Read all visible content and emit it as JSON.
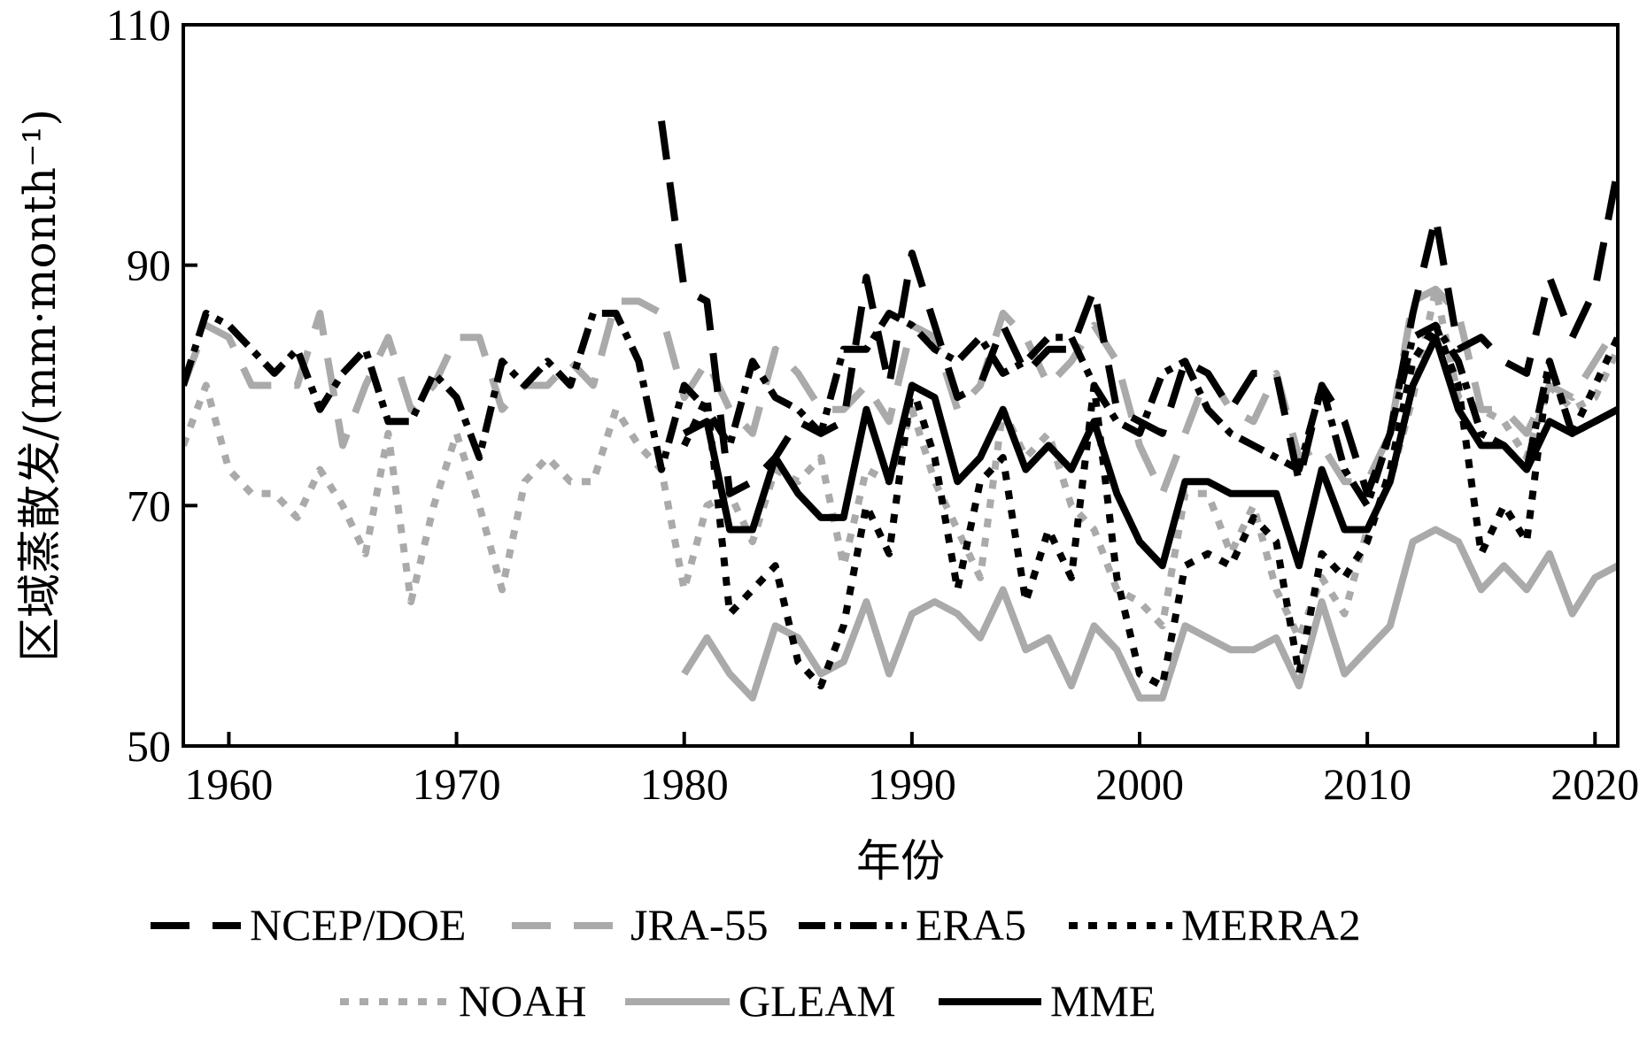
{
  "chart_data": {
    "type": "line",
    "xlabel": "年份",
    "ylabel": "区域蒸散发/(mm·month⁻¹)",
    "xlim": [
      1958,
      2021
    ],
    "ylim": [
      50,
      110
    ],
    "x_ticks": [
      1960,
      1970,
      1980,
      1990,
      2000,
      2010,
      2020
    ],
    "y_ticks": [
      50,
      70,
      90,
      110
    ],
    "grid": false,
    "legend_position": "bottom",
    "series": [
      {
        "name": "NCEP/DOE",
        "color": "#000000",
        "style": "long-dash",
        "x": [
          1979,
          1980,
          1981,
          1982,
          1983,
          1984,
          1985,
          1986,
          1987,
          1988,
          1989,
          1990,
          1991,
          1992,
          1993,
          1994,
          1995,
          1996,
          1997,
          1998,
          1999,
          2000,
          2001,
          2002,
          2003,
          2004,
          2005,
          2006,
          2007,
          2008,
          2009,
          2010,
          2011,
          2012,
          2013,
          2014,
          2015,
          2016,
          2017,
          2018,
          2019,
          2020,
          2021
        ],
        "values": [
          102,
          88,
          87,
          71,
          72,
          74,
          77,
          76,
          77,
          89,
          80,
          91,
          85,
          79,
          80,
          85,
          81,
          83,
          83,
          88,
          78,
          77,
          76,
          82,
          81,
          78,
          81,
          81,
          72,
          80,
          77,
          71,
          76,
          86,
          94,
          83,
          84,
          82,
          81,
          89,
          84,
          88,
          98
        ]
      },
      {
        "name": "JRA-55",
        "color": "#aaaaaa",
        "style": "long-dash",
        "x": [
          1958,
          1959,
          1960,
          1961,
          1962,
          1963,
          1964,
          1965,
          1966,
          1967,
          1968,
          1969,
          1970,
          1971,
          1972,
          1973,
          1974,
          1975,
          1976,
          1977,
          1978,
          1979,
          1980,
          1981,
          1982,
          1983,
          1984,
          1985,
          1986,
          1987,
          1988,
          1989,
          1990,
          1991,
          1992,
          1993,
          1994,
          1995,
          1996,
          1997,
          1998,
          1999,
          2000,
          2001,
          2002,
          2003,
          2004,
          2005,
          2006,
          2007,
          2008,
          2009,
          2010,
          2011,
          2012,
          2013,
          2014,
          2015,
          2016,
          2017,
          2018,
          2019,
          2020,
          2021
        ],
        "values": [
          80,
          85,
          84,
          80,
          80,
          80,
          86,
          75,
          80,
          84,
          78,
          80,
          84,
          84,
          78,
          80,
          80,
          82,
          80,
          87,
          87,
          86,
          79,
          82,
          78,
          76,
          83,
          81,
          78,
          78,
          80,
          77,
          85,
          84,
          78,
          80,
          86,
          84,
          80,
          82,
          85,
          82,
          75,
          71,
          76,
          81,
          78,
          77,
          81,
          74,
          75,
          72,
          72,
          76,
          87,
          88,
          86,
          78,
          78,
          76,
          80,
          79,
          82,
          85
        ]
      },
      {
        "name": "ERA5",
        "color": "#000000",
        "style": "dash-dot",
        "x": [
          1958,
          1959,
          1960,
          1961,
          1962,
          1963,
          1964,
          1965,
          1966,
          1967,
          1968,
          1969,
          1970,
          1971,
          1972,
          1973,
          1974,
          1975,
          1976,
          1977,
          1978,
          1979,
          1980,
          1981,
          1982,
          1983,
          1984,
          1985,
          1986,
          1987,
          1988,
          1989,
          1990,
          1991,
          1992,
          1993,
          1994,
          1995,
          1996,
          1997,
          1998,
          1999,
          2000,
          2001,
          2002,
          2003,
          2004,
          2005,
          2006,
          2007,
          2008,
          2009,
          2010,
          2011,
          2012,
          2013,
          2014,
          2015,
          2016,
          2017,
          2018,
          2019,
          2020,
          2021
        ],
        "values": [
          80,
          86,
          85,
          83,
          81,
          83,
          78,
          81,
          83,
          77,
          77,
          81,
          79,
          74,
          82,
          80,
          82,
          80,
          86,
          86,
          82,
          73,
          80,
          78,
          75,
          82,
          79,
          78,
          76,
          83,
          83,
          86,
          85,
          83,
          82,
          84,
          81,
          82,
          84,
          84,
          80,
          77,
          76,
          81,
          82,
          78,
          76,
          75,
          74,
          73,
          80,
          73,
          70,
          76,
          84,
          85,
          82,
          76,
          75,
          73,
          82,
          76,
          77,
          78
        ]
      },
      {
        "name": "MERRA2",
        "color": "#000000",
        "style": "dotted",
        "x": [
          1980,
          1981,
          1982,
          1983,
          1984,
          1985,
          1986,
          1987,
          1988,
          1989,
          1990,
          1991,
          1992,
          1993,
          1994,
          1995,
          1996,
          1997,
          1998,
          1999,
          2000,
          2001,
          2002,
          2003,
          2004,
          2005,
          2006,
          2007,
          2008,
          2009,
          2010,
          2011,
          2012,
          2013,
          2014,
          2015,
          2016,
          2017,
          2018,
          2019,
          2020,
          2021
        ],
        "values": [
          75,
          79,
          61,
          63,
          65,
          57,
          55,
          60,
          70,
          66,
          80,
          74,
          63,
          72,
          74,
          62,
          68,
          64,
          80,
          64,
          56,
          55,
          65,
          66,
          65,
          69,
          67,
          56,
          66,
          64,
          67,
          73,
          82,
          85,
          80,
          66,
          70,
          67,
          82,
          76,
          80,
          84
        ]
      },
      {
        "name": "NOAH",
        "color": "#aaaaaa",
        "style": "dotted",
        "x": [
          1958,
          1959,
          1960,
          1961,
          1962,
          1963,
          1964,
          1965,
          1966,
          1967,
          1968,
          1969,
          1970,
          1971,
          1972,
          1973,
          1974,
          1975,
          1976,
          1977,
          1978,
          1979,
          1980,
          1981,
          1982,
          1983,
          1984,
          1985,
          1986,
          1987,
          1988,
          1989,
          1990,
          1991,
          1992,
          1993,
          1994,
          1995,
          1996,
          1997,
          1998,
          1999,
          2000,
          2001,
          2002,
          2003,
          2004,
          2005,
          2006,
          2007,
          2008,
          2009,
          2010,
          2011,
          2012,
          2013,
          2014,
          2015,
          2016,
          2017,
          2018,
          2019,
          2020,
          2021
        ],
        "values": [
          75,
          80,
          73,
          71,
          71,
          69,
          73,
          70,
          66,
          76,
          62,
          70,
          76,
          70,
          63,
          72,
          74,
          72,
          72,
          78,
          75,
          73,
          63,
          70,
          71,
          67,
          73,
          72,
          74,
          65,
          73,
          72,
          78,
          72,
          68,
          64,
          78,
          74,
          76,
          70,
          68,
          63,
          62,
          60,
          71,
          71,
          66,
          70,
          63,
          59,
          64,
          61,
          68,
          72,
          79,
          88,
          79,
          78,
          77,
          74,
          80,
          78,
          79,
          83
        ]
      },
      {
        "name": "GLEAM",
        "color": "#aaaaaa",
        "style": "solid",
        "x": [
          1980,
          1981,
          1982,
          1983,
          1984,
          1985,
          1986,
          1987,
          1988,
          1989,
          1990,
          1991,
          1992,
          1993,
          1994,
          1995,
          1996,
          1997,
          1998,
          1999,
          2000,
          2001,
          2002,
          2003,
          2004,
          2005,
          2006,
          2007,
          2008,
          2009,
          2010,
          2011,
          2012,
          2013,
          2014,
          2015,
          2016,
          2017,
          2018,
          2019,
          2020,
          2021
        ],
        "values": [
          56,
          59,
          56,
          54,
          60,
          59,
          56,
          57,
          62,
          56,
          61,
          62,
          61,
          59,
          63,
          58,
          59,
          55,
          60,
          58,
          54,
          54,
          60,
          59,
          58,
          58,
          59,
          55,
          62,
          56,
          58,
          60,
          67,
          68,
          67,
          63,
          65,
          63,
          66,
          61,
          64,
          65
        ]
      },
      {
        "name": "MME",
        "color": "#000000",
        "style": "solid",
        "x": [
          1980,
          1981,
          1982,
          1983,
          1984,
          1985,
          1986,
          1987,
          1988,
          1989,
          1990,
          1991,
          1992,
          1993,
          1994,
          1995,
          1996,
          1997,
          1998,
          1999,
          2000,
          2001,
          2002,
          2003,
          2004,
          2005,
          2006,
          2007,
          2008,
          2009,
          2010,
          2011,
          2012,
          2013,
          2014,
          2015,
          2016,
          2017,
          2018,
          2019,
          2020,
          2021
        ],
        "values": [
          76,
          77,
          68,
          68,
          74,
          71,
          69,
          69,
          78,
          72,
          80,
          79,
          72,
          74,
          78,
          73,
          75,
          73,
          77,
          71,
          67,
          65,
          72,
          72,
          71,
          71,
          71,
          65,
          73,
          68,
          68,
          72,
          80,
          84,
          78,
          75,
          75,
          73,
          77,
          76,
          77,
          78
        ]
      }
    ]
  }
}
